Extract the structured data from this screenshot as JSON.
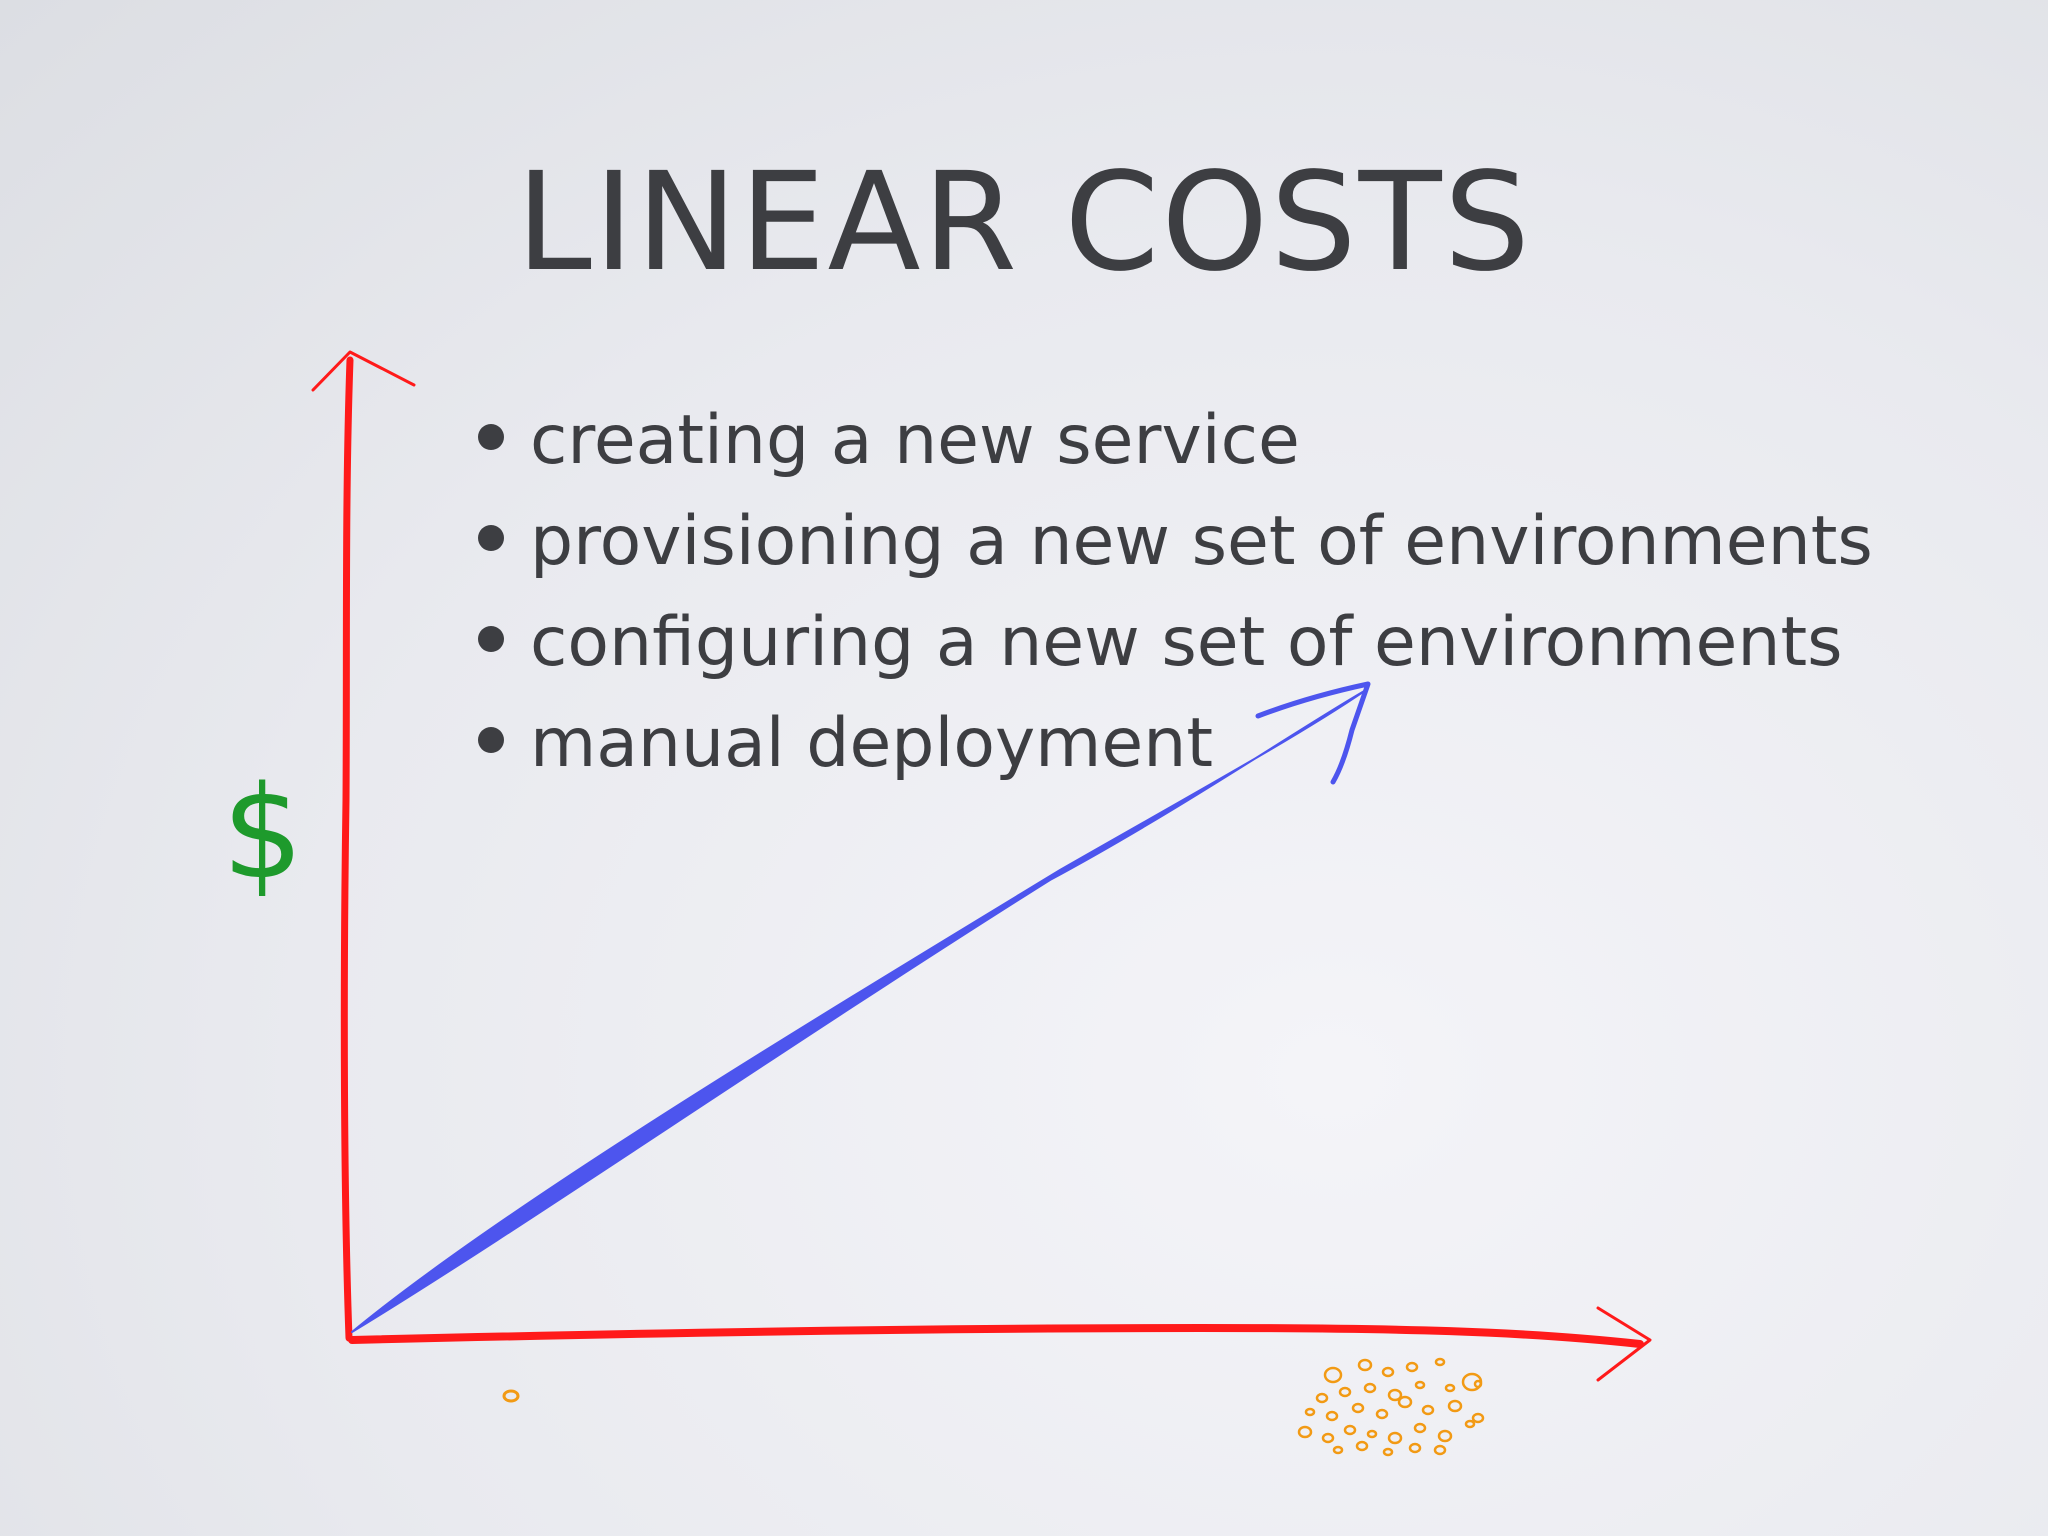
{
  "slide": {
    "title": "LINEAR COSTS",
    "bullets": [
      "creating a new service",
      "provisioning a new set of environments",
      "configuring a new set of environments",
      "manual deployment"
    ]
  },
  "chart_data": {
    "type": "line",
    "style": "hand-drawn",
    "title": "",
    "ylabel": "$",
    "xlabel": "",
    "x_start_label": "o",
    "x_end_label": "many small circles",
    "series": [
      {
        "x": [
          0,
          1
        ],
        "y": [
          0,
          1
        ]
      }
    ],
    "colors": {
      "axes": "#ff1a1a",
      "line": "#4d55ee",
      "ylabel": "#1e9a2c",
      "xlabels": "#f29a14"
    }
  }
}
